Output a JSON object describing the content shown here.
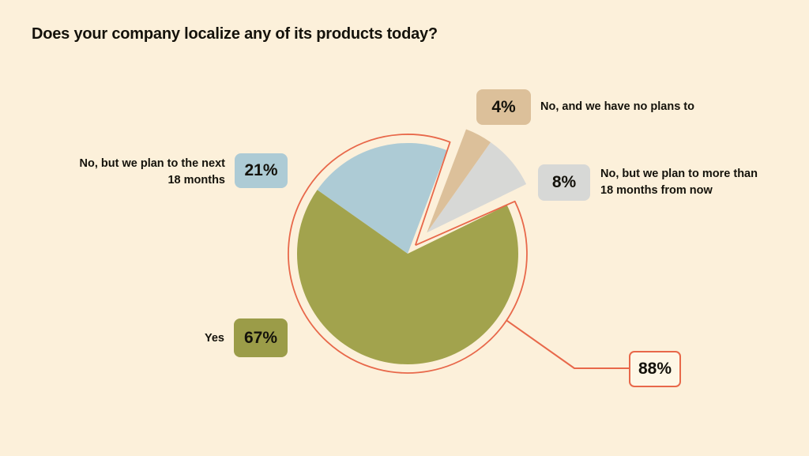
{
  "title": "Does your company localize any of its products today?",
  "colors": {
    "background": "#FCF0DA",
    "accent_orange": "#E8684A",
    "text": "#14120B",
    "yes_green": "#A2A34D",
    "yes_badge_green": "#9B9C48",
    "plan18_blue": "#ADCBD5",
    "more18_gray": "#D7D8D6",
    "noplans_tan": "#DCC09A",
    "callout_bg": "#FEF7E6"
  },
  "chart_data": {
    "type": "pie",
    "title": "Does your company localize any of its products today?",
    "slices": [
      {
        "label": "Yes",
        "value": 67,
        "color": "#A2A34D",
        "exploded": false
      },
      {
        "label": "No, but we plan to the next 18 months",
        "value": 21,
        "color": "#ADCBD5",
        "exploded": false
      },
      {
        "label": "No, but we plan to more than 18 months from now",
        "value": 8,
        "color": "#D7D8D6",
        "exploded": true
      },
      {
        "label": "No, and we have no plans to",
        "value": 4,
        "color": "#DCC09A",
        "exploded": true
      }
    ],
    "outlined_group": {
      "slices": [
        "Yes",
        "No, but we plan to the next 18 months"
      ],
      "total": 88,
      "callout_label": "88%"
    },
    "legend_position": "around"
  },
  "labels": {
    "yes": {
      "text": "Yes",
      "badge": "67%"
    },
    "plan_next_18": {
      "line1": "No, but we plan to the next",
      "line2": "18 months",
      "badge": "21%"
    },
    "no_plans": {
      "text": "No, and we have no plans to",
      "badge": "4%"
    },
    "plan_more_18": {
      "line1": "No, but we plan to more than",
      "line2": "18 months from now",
      "badge": "8%"
    },
    "callout": {
      "badge": "88%"
    }
  }
}
